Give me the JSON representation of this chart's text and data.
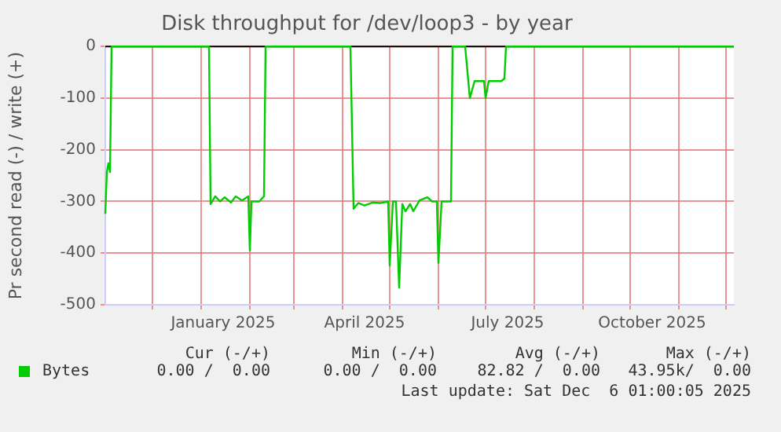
{
  "chart_data": {
    "type": "line",
    "title": "Disk throughput for /dev/loop3 - by year",
    "ylabel": "Pr second read (-) / write (+)",
    "x": [
      "2024-11-01",
      "2024-11-02",
      "2024-11-03",
      "2024-11-04",
      "2024-11-05",
      "2025-01-06",
      "2025-01-07",
      "2025-01-10",
      "2025-01-13",
      "2025-01-16",
      "2025-01-20",
      "2025-01-23",
      "2025-01-27",
      "2025-01-31",
      "2025-02-01",
      "2025-02-02",
      "2025-02-07",
      "2025-02-10",
      "2025-02-11",
      "2025-04-06",
      "2025-04-08",
      "2025-04-11",
      "2025-04-15",
      "2025-04-20",
      "2025-04-25",
      "2025-04-30",
      "2025-05-01",
      "2025-05-03",
      "2025-05-05",
      "2025-05-07",
      "2025-05-09",
      "2025-05-11",
      "2025-05-14",
      "2025-05-16",
      "2025-05-20",
      "2025-05-25",
      "2025-05-28",
      "2025-05-31",
      "2025-06-01",
      "2025-06-03",
      "2025-06-09",
      "2025-06-10",
      "2025-06-18",
      "2025-06-21",
      "2025-06-24",
      "2025-06-30",
      "2025-07-01",
      "2025-07-03",
      "2025-07-11",
      "2025-07-13",
      "2025-07-14",
      "2025-12-06"
    ],
    "series": [
      {
        "name": "Bytes",
        "color": "#00cc00",
        "values": [
          -324,
          -243,
          -226,
          -243,
          0,
          0,
          -305,
          -290,
          -300,
          -292,
          -302,
          -290,
          -298,
          -290,
          -395,
          -300,
          -300,
          -290,
          0,
          0,
          -314,
          -303,
          -308,
          -302,
          -303,
          -300,
          -424,
          -300,
          -300,
          -467,
          -305,
          -319,
          -305,
          -319,
          -298,
          -292,
          -300,
          -300,
          -419,
          -300,
          -300,
          0,
          0,
          -100,
          -67,
          -67,
          -100,
          -67,
          -67,
          -62,
          0,
          0
        ]
      }
    ],
    "xlim": [
      "2024-11-01",
      "2025-12-06"
    ],
    "xticks": [
      {
        "value": "2024-12-01",
        "label": null
      },
      {
        "value": "2025-01-01",
        "label": null
      },
      {
        "value": "2025-01-15",
        "label": "January 2025"
      },
      {
        "value": "2025-02-01",
        "label": null
      },
      {
        "value": "2025-03-01",
        "label": null
      },
      {
        "value": "2025-04-01",
        "label": null
      },
      {
        "value": "2025-04-15",
        "label": "April 2025"
      },
      {
        "value": "2025-05-01",
        "label": null
      },
      {
        "value": "2025-06-01",
        "label": null
      },
      {
        "value": "2025-07-01",
        "label": null
      },
      {
        "value": "2025-07-15",
        "label": "July 2025"
      },
      {
        "value": "2025-08-01",
        "label": null
      },
      {
        "value": "2025-09-01",
        "label": null
      },
      {
        "value": "2025-10-01",
        "label": null
      },
      {
        "value": "2025-10-15",
        "label": "October 2025"
      },
      {
        "value": "2025-11-01",
        "label": null
      },
      {
        "value": "2025-12-01",
        "label": null
      }
    ],
    "ylim": [
      -500,
      0
    ],
    "yticks": [
      -500,
      -400,
      -300,
      -200,
      -100,
      0
    ],
    "grid": true,
    "legend": "bottom left",
    "marker": "none",
    "line_style": "solid",
    "annotations": [
      "Cur (-/+)",
      "Min (-/+)",
      "Avg (-/+)",
      "Max (-/+)",
      "0.00 /  0.00",
      "0.00 /  0.00",
      "82.82 /  0.00",
      "43.95k/  0.00",
      "Last update: Sat Dec  6 01:00:05 2025"
    ]
  }
}
